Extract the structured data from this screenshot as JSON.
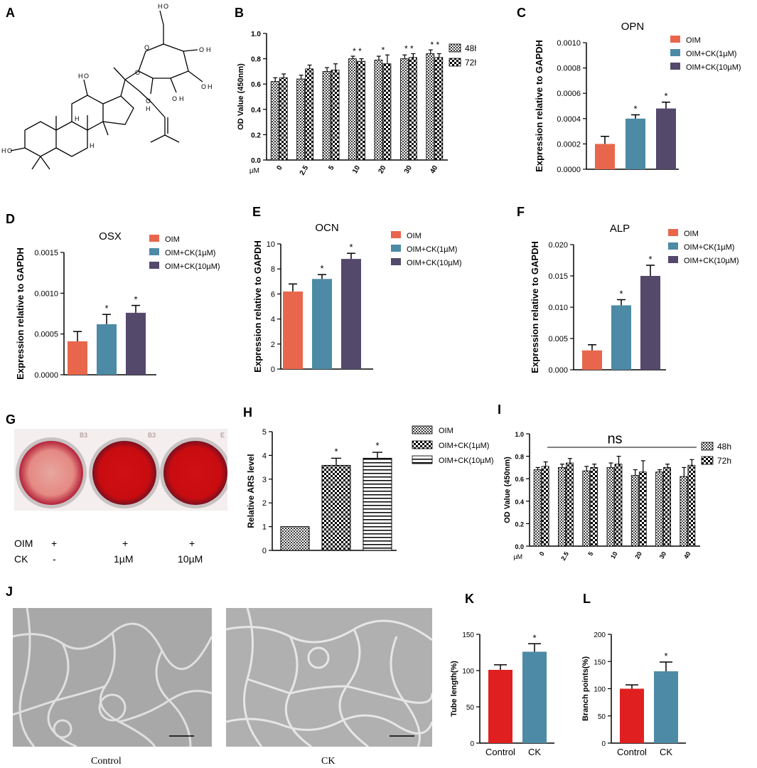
{
  "panel_labels": [
    "A",
    "B",
    "C",
    "D",
    "E",
    "F",
    "G",
    "H",
    "I",
    "J",
    "K",
    "L"
  ],
  "colors": {
    "oim": "#e8674c",
    "ck1": "#4d8aa5",
    "ck10": "#54486b",
    "red": "#e02020",
    "blue": "#4d8aa5"
  },
  "legend_oim": [
    "OIM",
    "OIM+CK(1µM)",
    "OIM+CK(10µM)"
  ],
  "panelG": {
    "row_labels": [
      "OIM",
      "CK"
    ],
    "oim_values": [
      "+",
      "+",
      "+"
    ],
    "ck_values": [
      "-",
      "1µM",
      "10µM"
    ],
    "well_marks": [
      "B3",
      "B3",
      "E"
    ]
  },
  "panelJ": {
    "captions": [
      "Control",
      "CK"
    ]
  },
  "chart_data": [
    {
      "panel": "B",
      "type": "bar",
      "ylabel": "OD Value (450nm)",
      "xunit": "µM",
      "categories": [
        "0",
        "2.5",
        "5",
        "10",
        "20",
        "30",
        "40"
      ],
      "ylim": [
        0,
        1.0
      ],
      "yticks": [
        "0.0",
        "0.2",
        "0.4",
        "0.6",
        "0.8",
        "1.0"
      ],
      "series": [
        {
          "name": "48h",
          "values": [
            0.62,
            0.64,
            0.7,
            0.8,
            0.79,
            0.8,
            0.84
          ],
          "errors": [
            0.03,
            0.03,
            0.03,
            0.02,
            0.03,
            0.03,
            0.03
          ]
        },
        {
          "name": "72h",
          "values": [
            0.65,
            0.72,
            0.71,
            0.78,
            0.76,
            0.81,
            0.81
          ],
          "errors": [
            0.03,
            0.03,
            0.05,
            0.02,
            0.07,
            0.03,
            0.03
          ]
        }
      ],
      "significance": [
        "",
        "",
        "",
        "* *",
        "*",
        "* *",
        "* *"
      ]
    },
    {
      "panel": "C",
      "type": "bar",
      "title": "OPN",
      "ylabel": "Expression relative to  GAPDH",
      "ylim": [
        0,
        0.001
      ],
      "yticks": [
        "0.0000",
        "0.0002",
        "0.0004",
        "0.0006",
        "0.0008",
        "0.0010"
      ],
      "categories": [
        "OIM",
        "OIM+CK(1µM)",
        "OIM+CK(10µM)"
      ],
      "values": [
        0.0002,
        0.0004,
        0.00048
      ],
      "errors": [
        6e-05,
        3e-05,
        5e-05
      ],
      "significance": [
        "",
        "*",
        "*"
      ]
    },
    {
      "panel": "D",
      "type": "bar",
      "title": "OSX",
      "ylabel": "Expression relative to  GAPDH",
      "ylim": [
        0,
        0.0015
      ],
      "yticks": [
        "0.0000",
        "0.0005",
        "0.0010",
        "0.0015"
      ],
      "categories": [
        "OIM",
        "OIM+CK(1µM)",
        "OIM+CK(10µM)"
      ],
      "values": [
        0.00041,
        0.00062,
        0.00076
      ],
      "errors": [
        0.00012,
        0.00012,
        9e-05
      ],
      "significance": [
        "",
        "*",
        "*"
      ]
    },
    {
      "panel": "E",
      "type": "bar",
      "title": "OCN",
      "ylabel": "Expression relative to  GAPDH",
      "ylim": [
        0,
        10
      ],
      "yticks": [
        "0",
        "2",
        "4",
        "6",
        "8",
        "10"
      ],
      "categories": [
        "OIM",
        "OIM+CK(1µM)",
        "OIM+CK(10µM)"
      ],
      "values": [
        6.2,
        7.2,
        8.8
      ],
      "errors": [
        0.6,
        0.35,
        0.45
      ],
      "significance": [
        "",
        "*",
        "*"
      ]
    },
    {
      "panel": "F",
      "type": "bar",
      "title": "ALP",
      "ylabel": "Expression relative to  GAPDH",
      "ylim": [
        0,
        0.02
      ],
      "yticks": [
        "0.000",
        "0.005",
        "0.010",
        "0.015",
        "0.020"
      ],
      "categories": [
        "OIM",
        "OIM+CK(1µM)",
        "OIM+CK(10µM)"
      ],
      "values": [
        0.0031,
        0.0103,
        0.015
      ],
      "errors": [
        0.0009,
        0.0009,
        0.0017
      ],
      "significance": [
        "",
        "*",
        "*"
      ]
    },
    {
      "panel": "H",
      "type": "bar",
      "ylabel": "Relative ARS level",
      "ylim": [
        0,
        5
      ],
      "yticks": [
        "0",
        "1",
        "2",
        "3",
        "4",
        "5"
      ],
      "categories": [
        "OIM",
        "OIM+CK(1µM)",
        "OIM+CK(10µM)"
      ],
      "values": [
        1.0,
        3.58,
        3.88
      ],
      "errors": [
        0,
        0.3,
        0.25
      ],
      "significance": [
        "",
        "*",
        "*"
      ]
    },
    {
      "panel": "I",
      "type": "bar",
      "ylabel": "OD Value (450nm)",
      "xunit": "µM",
      "annotation": "ns",
      "categories": [
        "0",
        "2.5",
        "5",
        "10",
        "20",
        "30",
        "40"
      ],
      "ylim": [
        0,
        1.0
      ],
      "yticks": [
        "0.0",
        "0.2",
        "0.4",
        "0.6",
        "0.8",
        "1.0"
      ],
      "series": [
        {
          "name": "48h",
          "values": [
            0.68,
            0.7,
            0.67,
            0.7,
            0.63,
            0.66,
            0.62
          ],
          "errors": [
            0.02,
            0.03,
            0.04,
            0.04,
            0.05,
            0.02,
            0.08
          ]
        },
        {
          "name": "72h",
          "values": [
            0.71,
            0.74,
            0.7,
            0.73,
            0.66,
            0.7,
            0.72
          ],
          "errors": [
            0.04,
            0.04,
            0.03,
            0.07,
            0.1,
            0.03,
            0.05
          ]
        }
      ]
    },
    {
      "panel": "K",
      "type": "bar",
      "ylabel": "Tube length(%)",
      "ylim": [
        0,
        150
      ],
      "yticks": [
        "0",
        "50",
        "100",
        "150"
      ],
      "categories": [
        "Control",
        "CK"
      ],
      "values": [
        101,
        126
      ],
      "errors": [
        7,
        11
      ],
      "significance": [
        "",
        "*"
      ]
    },
    {
      "panel": "L",
      "type": "bar",
      "ylabel": "Branch points(%)",
      "ylim": [
        0,
        200
      ],
      "yticks": [
        "0",
        "50",
        "100",
        "150",
        "200"
      ],
      "categories": [
        "Control",
        "CK"
      ],
      "values": [
        100,
        132
      ],
      "errors": [
        7,
        17
      ],
      "significance": [
        "",
        "*"
      ]
    }
  ]
}
